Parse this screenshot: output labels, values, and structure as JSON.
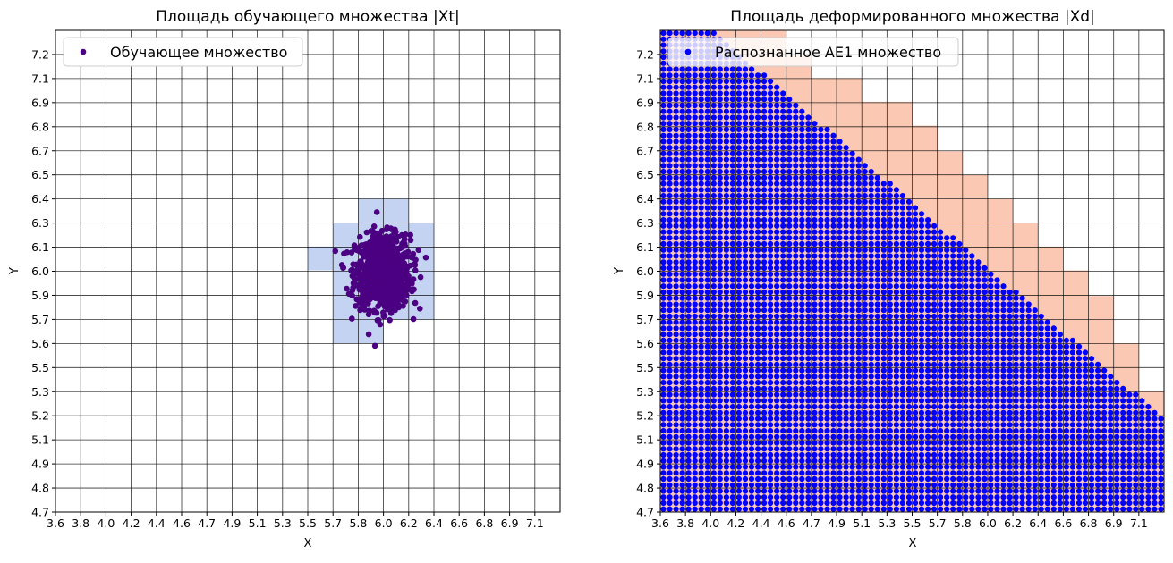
{
  "chart_data": [
    {
      "type": "scatter",
      "title": "Площадь обучающего множества |Xt|",
      "xlabel": "X",
      "ylabel": "Y",
      "xlim": [
        3.6,
        7.3
      ],
      "ylim": [
        4.7,
        7.33
      ],
      "grid": true,
      "x_tick_labels": [
        "3.6",
        "3.8",
        "4.0",
        "4.2",
        "4.4",
        "4.6",
        "4.7",
        "4.9",
        "5.1",
        "5.3",
        "5.5",
        "5.7",
        "5.8",
        "6.0",
        "6.2",
        "6.4",
        "6.6",
        "6.8",
        "6.9",
        "7.1"
      ],
      "y_tick_labels": [
        "4.7",
        "4.8",
        "4.9",
        "5.1",
        "5.2",
        "5.3",
        "5.5",
        "5.6",
        "5.7",
        "5.9",
        "6.0",
        "6.1",
        "6.3",
        "6.4",
        "6.5",
        "6.7",
        "6.8",
        "6.9",
        "7.1",
        "7.2"
      ],
      "legend": {
        "label": "Обучающее множество",
        "placement": "top-left"
      },
      "colors": {
        "points": "#4b0082",
        "shaded_cells": "#c5d3f3"
      },
      "shaded_cells": [
        {
          "x0": 5.82,
          "x1": 6.19,
          "y0": 6.28,
          "y1": 6.41
        },
        {
          "x0": 5.635,
          "x1": 6.375,
          "y0": 6.15,
          "y1": 6.28
        },
        {
          "x0": 5.45,
          "x1": 6.375,
          "y0": 6.02,
          "y1": 6.15
        },
        {
          "x0": 5.635,
          "x1": 6.375,
          "y0": 5.88,
          "y1": 6.02
        },
        {
          "x0": 5.635,
          "x1": 6.375,
          "y0": 5.75,
          "y1": 5.88
        },
        {
          "x0": 5.635,
          "x1": 6.005,
          "y0": 5.62,
          "y1": 5.75
        }
      ],
      "points_distribution": {
        "center": [
          6.0,
          6.01
        ],
        "std": [
          0.1,
          0.1
        ],
        "n": 1000
      }
    },
    {
      "type": "scatter",
      "title": "Площадь деформированного множества |Xd|",
      "xlabel": "X",
      "ylabel": "Y",
      "xlim": [
        3.6,
        7.3
      ],
      "ylim": [
        4.7,
        7.33
      ],
      "grid": true,
      "x_tick_labels": [
        "3.6",
        "3.8",
        "4.0",
        "4.2",
        "4.4",
        "4.6",
        "4.7",
        "4.9",
        "5.1",
        "5.3",
        "5.5",
        "5.7",
        "5.8",
        "6.0",
        "6.2",
        "6.4",
        "6.6",
        "6.8",
        "6.9",
        "7.1"
      ],
      "y_tick_labels": [
        "4.7",
        "4.8",
        "4.9",
        "5.1",
        "5.2",
        "5.3",
        "5.5",
        "5.6",
        "5.7",
        "5.9",
        "6.0",
        "6.1",
        "6.3",
        "6.4",
        "6.5",
        "6.7",
        "6.8",
        "6.9",
        "7.1",
        "7.2"
      ],
      "legend": {
        "label": "Распознанное АЕ1 множество",
        "placement": "top-left"
      },
      "colors": {
        "points": "#0000ff",
        "shaded_cells": "#fbc9b3"
      },
      "shaded_column_tops": [
        7.33,
        7.33,
        7.33,
        7.33,
        7.33,
        7.2,
        7.07,
        7.07,
        6.94,
        6.94,
        6.81,
        6.67,
        6.54,
        6.41,
        6.28,
        6.15,
        6.02,
        5.88,
        5.62,
        5.36
      ],
      "points_grid": {
        "x_start": 3.623,
        "x_step": 0.04625,
        "y_start": 4.716,
        "y_step": 0.0329
      },
      "points_boundary": {
        "intercept": 9.88,
        "slope": -0.64
      }
    }
  ]
}
